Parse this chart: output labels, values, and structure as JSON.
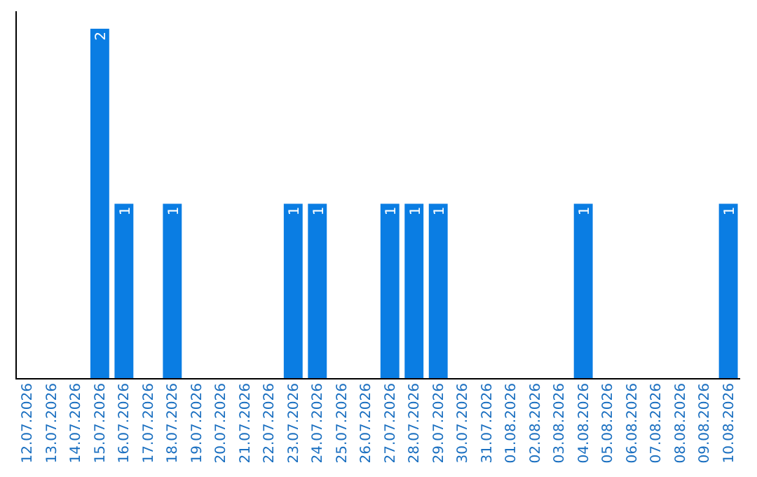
{
  "chart_data": {
    "type": "bar",
    "categories": [
      "12.07.2026",
      "13.07.2026",
      "14.07.2026",
      "15.07.2026",
      "16.07.2026",
      "17.07.2026",
      "18.07.2026",
      "19.07.2026",
      "20.07.2026",
      "21.07.2026",
      "22.07.2026",
      "23.07.2026",
      "24.07.2026",
      "25.07.2026",
      "26.07.2026",
      "27.07.2026",
      "28.07.2026",
      "29.07.2026",
      "30.07.2026",
      "31.07.2026",
      "01.08.2026",
      "02.08.2026",
      "03.08.2026",
      "04.08.2026",
      "05.08.2026",
      "06.08.2026",
      "07.08.2026",
      "08.08.2026",
      "09.08.2026",
      "10.08.2026"
    ],
    "values": [
      0,
      0,
      0,
      2,
      1,
      0,
      1,
      0,
      0,
      0,
      0,
      1,
      1,
      0,
      0,
      1,
      1,
      1,
      0,
      0,
      0,
      0,
      0,
      1,
      0,
      0,
      0,
      0,
      0,
      1
    ],
    "value_labels": [
      null,
      null,
      null,
      "2",
      "1",
      null,
      "1",
      null,
      null,
      null,
      null,
      "1",
      "1",
      null,
      null,
      "1",
      "1",
      "1",
      null,
      null,
      null,
      null,
      null,
      "1",
      null,
      null,
      null,
      null,
      null,
      "1"
    ],
    "color": "#0a7de3",
    "relative": false,
    "grid": false
  }
}
